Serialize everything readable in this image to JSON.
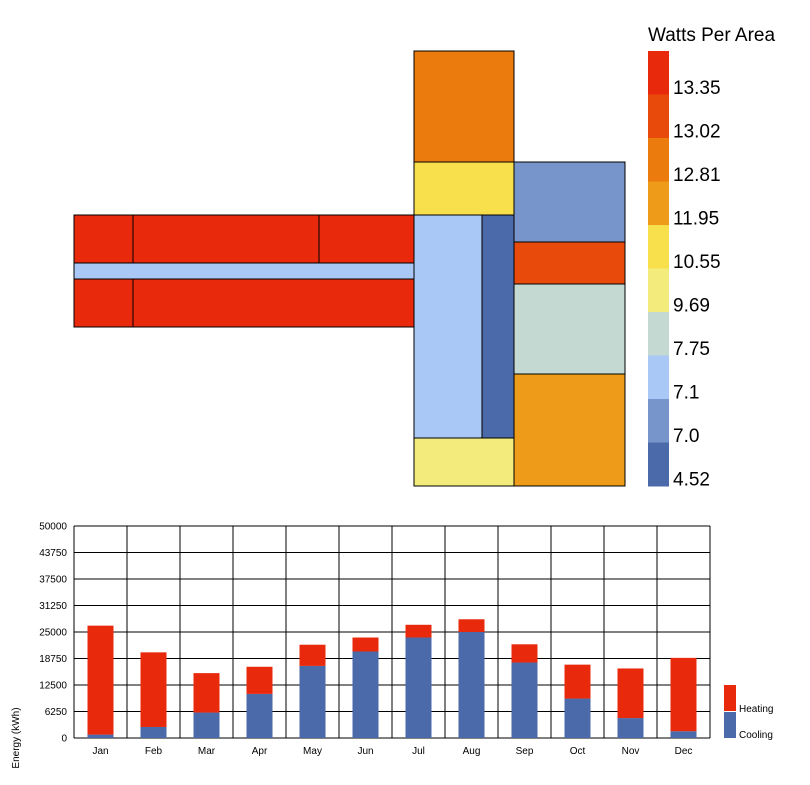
{
  "floorplan": {
    "legend_title": "Watts Per Area",
    "legend_bins": [
      {
        "label": "13.35",
        "color": "#E8290B"
      },
      {
        "label": "13.02",
        "color": "#E84A0B"
      },
      {
        "label": "12.81",
        "color": "#EB7B0C"
      },
      {
        "label": "11.95",
        "color": "#ED9B18"
      },
      {
        "label": "10.55",
        "color": "#F7E04B"
      },
      {
        "label": "9.69",
        "color": "#F3EC7C"
      },
      {
        "label": "7.75",
        "color": "#C3D9D2"
      },
      {
        "label": "7.1",
        "color": "#AAC8F5"
      },
      {
        "label": "7.0",
        "color": "#7795CB"
      },
      {
        "label": "4.52",
        "color": "#4B6AAA"
      }
    ],
    "zones": [
      {
        "name": "zone-west-north-1",
        "value": 13.35
      },
      {
        "name": "zone-west-north-2",
        "value": 13.35
      },
      {
        "name": "zone-west-north-3",
        "value": 13.35
      },
      {
        "name": "zone-west-corridor",
        "value": 7.1
      },
      {
        "name": "zone-west-south-1",
        "value": 13.35
      },
      {
        "name": "zone-west-south-2",
        "value": 13.35
      },
      {
        "name": "zone-north-wing",
        "value": 12.81
      },
      {
        "name": "zone-center-north",
        "value": 10.55
      },
      {
        "name": "zone-center-west",
        "value": 7.1
      },
      {
        "name": "zone-center-east",
        "value": 4.52
      },
      {
        "name": "zone-center-south",
        "value": 9.69
      },
      {
        "name": "zone-east-1",
        "value": 7.0
      },
      {
        "name": "zone-east-2",
        "value": 13.02
      },
      {
        "name": "zone-east-3",
        "value": 7.75
      },
      {
        "name": "zone-east-4",
        "value": 11.95
      }
    ]
  },
  "chart_data": {
    "type": "bar",
    "stacked": true,
    "categories": [
      "Jan",
      "Feb",
      "Mar",
      "Apr",
      "May",
      "Jun",
      "Jul",
      "Aug",
      "Sep",
      "Oct",
      "Nov",
      "Dec"
    ],
    "series": [
      {
        "name": "Cooling",
        "color": "#4B6AAA",
        "values": [
          800,
          2600,
          6000,
          10400,
          17000,
          20400,
          23700,
          25000,
          17800,
          9300,
          4700,
          1600
        ]
      },
      {
        "name": "Heating",
        "color": "#E8290B",
        "values": [
          25700,
          17600,
          9300,
          6400,
          5000,
          3300,
          3000,
          3000,
          4300,
          8000,
          11700,
          17300
        ]
      }
    ],
    "ylabel": "Energy (kWh)",
    "ylim": [
      0,
      50000
    ],
    "yticks": [
      "0",
      "6250",
      "12500",
      "18750",
      "25000",
      "31250",
      "37500",
      "43750",
      "50000"
    ],
    "grid": true,
    "legend_position": "right"
  }
}
